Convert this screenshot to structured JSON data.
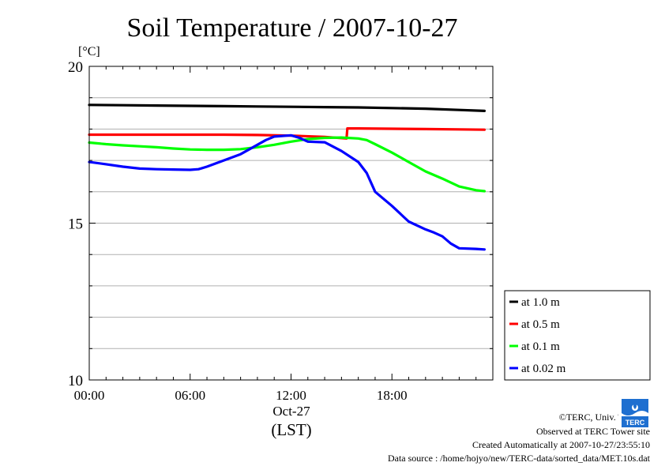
{
  "chart_data": {
    "type": "line",
    "title": "Soil Temperature / 2007-10-27",
    "unit_label": "[°C]",
    "x_date_label": "Oct-27",
    "x_zone_label": "(LST)",
    "x_ticks": [
      "00:00",
      "06:00",
      "12:00",
      "18:00"
    ],
    "x_tick_values": [
      0,
      6,
      12,
      18
    ],
    "xlim": [
      0,
      24
    ],
    "y_ticks": [
      "10",
      "15",
      "20"
    ],
    "y_tick_values": [
      10,
      15,
      20
    ],
    "ylim": [
      10,
      20
    ],
    "grid": "horizontal",
    "legend_placement": "lower-right outside",
    "series": [
      {
        "name": "at 1.0 m",
        "color": "#000000",
        "x": [
          0,
          2,
          4,
          6,
          8,
          10,
          12,
          14,
          16,
          18,
          20,
          22,
          23.5
        ],
        "y": [
          18.77,
          18.76,
          18.75,
          18.74,
          18.73,
          18.72,
          18.71,
          18.7,
          18.69,
          18.67,
          18.65,
          18.61,
          18.58
        ]
      },
      {
        "name": "at 0.5 m",
        "color": "#ff0000",
        "x": [
          0,
          2,
          4,
          6,
          8,
          10,
          12,
          14,
          15.3,
          15.35,
          16,
          18,
          20,
          22,
          23.5
        ],
        "y": [
          17.82,
          17.82,
          17.82,
          17.82,
          17.82,
          17.81,
          17.79,
          17.75,
          17.7,
          18.02,
          18.02,
          18.01,
          18.0,
          17.99,
          17.98
        ]
      },
      {
        "name": "at 0.1 m",
        "color": "#00ff00",
        "x": [
          0,
          1,
          2,
          3,
          4,
          5,
          6,
          7,
          8,
          9,
          10,
          11,
          12,
          13,
          14,
          15,
          16,
          16.5,
          17,
          18,
          19,
          20,
          21,
          22,
          23,
          23.5
        ],
        "y": [
          17.57,
          17.52,
          17.48,
          17.45,
          17.42,
          17.38,
          17.35,
          17.34,
          17.34,
          17.36,
          17.42,
          17.5,
          17.6,
          17.68,
          17.72,
          17.73,
          17.7,
          17.65,
          17.52,
          17.25,
          16.95,
          16.65,
          16.42,
          16.17,
          16.05,
          16.02
        ]
      },
      {
        "name": "at 0.02 m",
        "color": "#0000ff",
        "x": [
          0,
          1,
          2,
          3,
          4,
          5,
          6,
          6.5,
          7,
          8,
          9,
          10,
          10.5,
          11,
          12,
          12.5,
          13,
          14,
          15,
          16,
          16.5,
          17,
          18,
          18.5,
          19,
          20,
          20.5,
          21,
          21.5,
          22,
          23,
          23.5
        ],
        "y": [
          16.95,
          16.88,
          16.8,
          16.74,
          16.72,
          16.71,
          16.7,
          16.72,
          16.8,
          17.0,
          17.2,
          17.5,
          17.65,
          17.76,
          17.8,
          17.72,
          17.6,
          17.58,
          17.3,
          16.95,
          16.6,
          16.0,
          15.55,
          15.3,
          15.05,
          14.8,
          14.7,
          14.58,
          14.35,
          14.2,
          14.18,
          14.16
        ]
      }
    ]
  },
  "footer": {
    "copyright": "©TERC, Univ. Tsukuba",
    "observed": "Observed at TERC Tower site",
    "created": "Created Automatically at 2007-10-27/23:55:10",
    "source": "Data source : /home/hojyo/new/TERC-data/sorted_data/MET.10s.dat"
  },
  "logo": {
    "text": "TERC",
    "color": "#1e6fd0"
  }
}
